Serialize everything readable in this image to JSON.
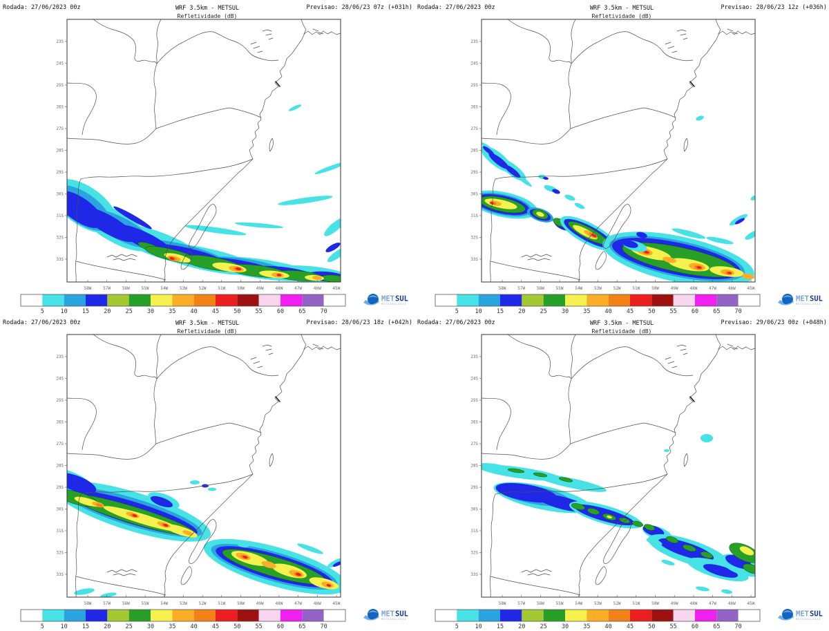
{
  "panels": [
    {
      "rodada": "Rodada: 27/06/2023 00z",
      "title": "WRF 3.5km - METSUL",
      "subtitle": "Refletividade (dB)",
      "previsao": "Previsao: 28/06/23 07z (+031h)"
    },
    {
      "rodada": "Rodada: 27/06/2023 00z",
      "title": "WRF 3.5km - METSUL",
      "subtitle": "Refletividade (dB)",
      "previsao": "Previsao: 28/06/23 12z (+036h)"
    },
    {
      "rodada": "Rodada: 27/06/2023 00z",
      "title": "WRF 3.5km - METSUL",
      "subtitle": "Refletividade (dB)",
      "previsao": "Previsao: 28/06/23 18z (+042h)"
    },
    {
      "rodada": "Rodada: 27/06/2023 00z",
      "title": "WRF 3.5km - METSUL",
      "subtitle": "Refletividade (dB)",
      "previsao": "Previsao: 29/06/23 00z (+048h)"
    }
  ],
  "axes": {
    "lat_ticks": [
      "23S",
      "24S",
      "25S",
      "26S",
      "27S",
      "28S",
      "29S",
      "30S",
      "31S",
      "32S",
      "33S"
    ],
    "lon_ticks": [
      "58W",
      "57W",
      "56W",
      "55W",
      "54W",
      "53W",
      "52W",
      "51W",
      "50W",
      "49W",
      "48W",
      "47W",
      "46W",
      "45W"
    ]
  },
  "colorbar": {
    "tick_values": [
      "5",
      "10",
      "15",
      "20",
      "25",
      "30",
      "35",
      "40",
      "45",
      "50",
      "55",
      "60",
      "65",
      "70"
    ],
    "segment_colors": [
      "#ffffff",
      "#46e2e6",
      "#2aa4df",
      "#2028e8",
      "#a4c832",
      "#28a028",
      "#f5f24f",
      "#faae28",
      "#f28118",
      "#eb1f1f",
      "#9e1111",
      "#f8d6f0",
      "#f020f0",
      "#9463c6",
      "#ffffff"
    ]
  },
  "logo": {
    "met": "MET",
    "sul": "SUL",
    "tagline": "METEOROLOGIA"
  },
  "chart_data": {
    "type": "heatmap",
    "title": "WRF 3.5km - METSUL",
    "subtitle": "Refletividade (dB)",
    "unit": "dB",
    "run": "27/06/2023 00z",
    "colorbar_ticks": [
      5,
      10,
      15,
      20,
      25,
      30,
      35,
      40,
      45,
      50,
      55,
      60,
      65,
      70
    ],
    "x_axis": {
      "ticks": [
        "58W",
        "57W",
        "56W",
        "55W",
        "54W",
        "53W",
        "52W",
        "51W",
        "50W",
        "49W",
        "48W",
        "47W",
        "46W",
        "45W"
      ]
    },
    "y_axis": {
      "ticks": [
        "23S",
        "24S",
        "25S",
        "26S",
        "27S",
        "28S",
        "29S",
        "30S",
        "31S",
        "32S",
        "33S"
      ]
    },
    "legend_position": "bottom",
    "grid": false,
    "panels": [
      {
        "valid": "28/06/23 07z",
        "lead_hours": 31,
        "description": "Cyan/blue echo mass over far southwest Rio Grande do Sul (58-55W, 30-33S) and a convective band hugging 33-34S from 56W to 45W with 30-50 dB cores (yellow/orange/red) near 54.5W, 52W and 49W."
      },
      {
        "valid": "28/06/23 12z",
        "lead_hours": 36,
        "description": "Band shifted northeast: 20-50 dB line from 59W/31S across Rio Grande do Sul to the coast near 32S/52W, then a broad 25-45 dB area with embedded 45-50 dB cores over the Atlantic between 51W and 45W south of 32S."
      },
      {
        "valid": "28/06/23 18z",
        "lead_hours": 42,
        "description": "Squall line from 59W/29.5S across central Rio Grande do Sul (25-45 dB, yellow core band) to the coast near 31S/51W, continuing southeast over the ocean to 34S/45W with 35-50 dB cores."
      },
      {
        "valid": "29/06/23 00z",
        "lead_hours": 48,
        "description": "Weakening broken band of 5-30 dB from 59W/28.5S across northern Rio Grande do Sul to the Atlantic near 30S/50W, extending southeast to 33S/45W with isolated 25-35 dB cells."
      }
    ]
  }
}
